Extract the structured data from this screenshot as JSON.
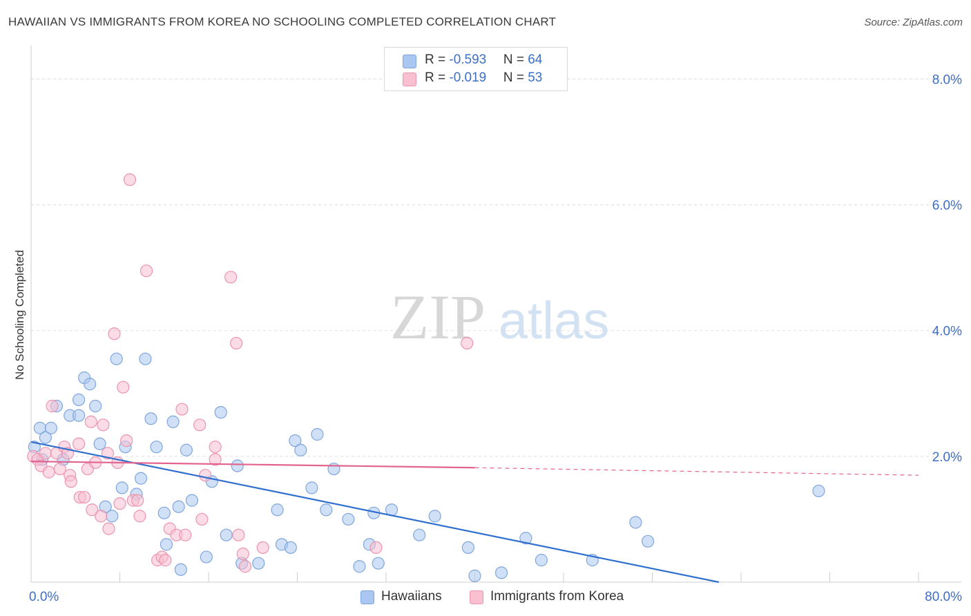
{
  "title": "HAWAIIAN VS IMMIGRANTS FROM KOREA NO SCHOOLING COMPLETED CORRELATION CHART",
  "source": "Source: ZipAtlas.com",
  "watermark": {
    "zip": "ZIP",
    "atlas": "atlas"
  },
  "legend": {
    "rows": [
      {
        "r_label": "R = ",
        "r_value": "-0.593",
        "n_label": "N = ",
        "n_value": "64",
        "color": "#a9c7f0",
        "border": "#7fa6dc"
      },
      {
        "r_label": "R = ",
        "r_value": "-0.019",
        "n_label": "N = ",
        "n_value": "53",
        "color": "#f8c0d1",
        "border": "#ec93ad"
      }
    ]
  },
  "bottom_legend": [
    {
      "label": "Hawaiians",
      "color": "#a9c7f0",
      "border": "#7fa6dc"
    },
    {
      "label": "Immigrants from Korea",
      "color": "#f8c0d1",
      "border": "#ec93ad"
    }
  ],
  "chart_data": {
    "type": "scatter",
    "ylabel": "No Schooling Completed",
    "xlabel": "",
    "xlim": [
      0,
      80
    ],
    "ylim": [
      0,
      8.4
    ],
    "x_tick_labels": [
      {
        "value": 0,
        "label": "0.0%"
      },
      {
        "value": 80,
        "label": "80.0%"
      }
    ],
    "y_tick_labels": [
      {
        "value": 2,
        "label": "2.0%"
      },
      {
        "value": 4,
        "label": "4.0%"
      },
      {
        "value": 6,
        "label": "6.0%"
      },
      {
        "value": 8,
        "label": "8.0%"
      }
    ],
    "y_gridlines": [
      2,
      4,
      6,
      8
    ],
    "series": [
      {
        "name": "Hawaiians",
        "color": "#a9c7f0",
        "stroke": "#7fa6dc",
        "trend": {
          "x": [
            0,
            62
          ],
          "y": [
            2.23,
            0
          ],
          "color": "#2f6fcf"
        },
        "points": [
          [
            0.3,
            2.15
          ],
          [
            0.8,
            2.45
          ],
          [
            1.3,
            2.3
          ],
          [
            1.8,
            2.45
          ],
          [
            2.3,
            2.8
          ],
          [
            2.9,
            1.95
          ],
          [
            3.5,
            2.65
          ],
          [
            4.3,
            2.65
          ],
          [
            4.3,
            2.9
          ],
          [
            4.8,
            3.25
          ],
          [
            5.3,
            3.15
          ],
          [
            5.8,
            2.8
          ],
          [
            6.2,
            2.2
          ],
          [
            6.7,
            1.2
          ],
          [
            7.3,
            1.05
          ],
          [
            7.7,
            3.55
          ],
          [
            8.2,
            1.5
          ],
          [
            8.5,
            2.15
          ],
          [
            9.5,
            1.4
          ],
          [
            9.9,
            1.65
          ],
          [
            10.3,
            3.55
          ],
          [
            10.8,
            2.6
          ],
          [
            11.3,
            2.15
          ],
          [
            12.0,
            1.1
          ],
          [
            12.2,
            0.6
          ],
          [
            12.8,
            2.55
          ],
          [
            13.3,
            1.2
          ],
          [
            13.5,
            0.2
          ],
          [
            14.0,
            2.1
          ],
          [
            14.5,
            1.3
          ],
          [
            15.8,
            0.4
          ],
          [
            16.3,
            1.6
          ],
          [
            17.1,
            2.7
          ],
          [
            17.6,
            0.75
          ],
          [
            18.6,
            1.85
          ],
          [
            19.0,
            0.3
          ],
          [
            20.5,
            0.3
          ],
          [
            22.2,
            1.15
          ],
          [
            22.6,
            0.6
          ],
          [
            23.4,
            0.55
          ],
          [
            23.8,
            2.25
          ],
          [
            24.3,
            2.1
          ],
          [
            25.3,
            1.5
          ],
          [
            25.8,
            2.35
          ],
          [
            26.6,
            1.15
          ],
          [
            27.3,
            1.8
          ],
          [
            28.6,
            1.0
          ],
          [
            29.6,
            0.25
          ],
          [
            30.5,
            0.6
          ],
          [
            30.9,
            1.1
          ],
          [
            31.3,
            0.3
          ],
          [
            32.5,
            1.15
          ],
          [
            35.0,
            0.75
          ],
          [
            36.4,
            1.05
          ],
          [
            39.4,
            0.55
          ],
          [
            40.0,
            0.1
          ],
          [
            42.4,
            0.15
          ],
          [
            44.6,
            0.7
          ],
          [
            46.0,
            0.35
          ],
          [
            50.6,
            0.35
          ],
          [
            54.5,
            0.95
          ],
          [
            55.6,
            0.65
          ],
          [
            71.0,
            1.45
          ],
          [
            1.0,
            1.95
          ]
        ]
      },
      {
        "name": "Immigrants from Korea",
        "color": "#f8c0d1",
        "stroke": "#ec93ad",
        "trend": {
          "x": [
            0,
            40
          ],
          "y": [
            1.92,
            1.82
          ],
          "dashed_to_x": 80,
          "dashed_to_y": 1.7,
          "color": "#e2648e"
        },
        "points": [
          [
            0.2,
            2.0
          ],
          [
            0.6,
            1.95
          ],
          [
            0.9,
            1.85
          ],
          [
            1.3,
            2.05
          ],
          [
            1.6,
            1.75
          ],
          [
            1.9,
            2.8
          ],
          [
            2.3,
            2.05
          ],
          [
            2.6,
            1.8
          ],
          [
            3.0,
            2.15
          ],
          [
            3.3,
            2.05
          ],
          [
            3.5,
            1.7
          ],
          [
            3.6,
            1.6
          ],
          [
            4.3,
            2.2
          ],
          [
            4.4,
            1.35
          ],
          [
            4.8,
            1.35
          ],
          [
            5.1,
            1.8
          ],
          [
            5.4,
            2.55
          ],
          [
            5.5,
            1.15
          ],
          [
            5.8,
            1.9
          ],
          [
            6.3,
            1.05
          ],
          [
            6.5,
            2.5
          ],
          [
            6.9,
            2.05
          ],
          [
            7.0,
            0.85
          ],
          [
            7.5,
            3.95
          ],
          [
            7.8,
            1.9
          ],
          [
            8.0,
            1.25
          ],
          [
            8.3,
            3.1
          ],
          [
            8.6,
            2.25
          ],
          [
            8.9,
            6.4
          ],
          [
            9.2,
            1.3
          ],
          [
            9.6,
            1.3
          ],
          [
            9.8,
            1.05
          ],
          [
            10.4,
            4.95
          ],
          [
            11.4,
            0.35
          ],
          [
            11.8,
            0.4
          ],
          [
            12.1,
            0.35
          ],
          [
            12.5,
            0.85
          ],
          [
            13.1,
            0.75
          ],
          [
            13.6,
            2.75
          ],
          [
            13.9,
            0.75
          ],
          [
            15.2,
            2.5
          ],
          [
            15.4,
            1.0
          ],
          [
            15.7,
            1.7
          ],
          [
            16.6,
            1.95
          ],
          [
            16.6,
            2.15
          ],
          [
            18.0,
            4.85
          ],
          [
            18.5,
            3.8
          ],
          [
            18.7,
            0.75
          ],
          [
            19.1,
            0.45
          ],
          [
            19.3,
            0.25
          ],
          [
            20.9,
            0.55
          ],
          [
            31.1,
            0.55
          ],
          [
            39.3,
            3.8
          ]
        ]
      }
    ]
  }
}
